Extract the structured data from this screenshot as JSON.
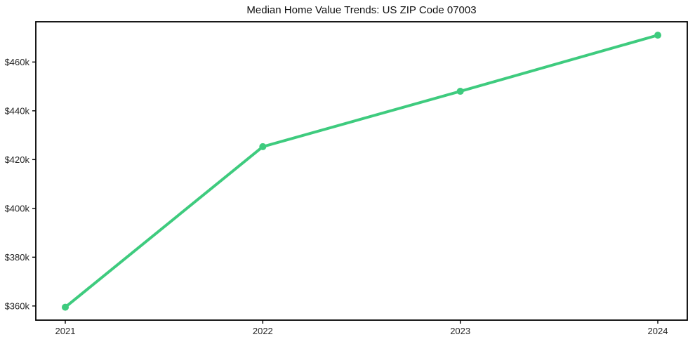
{
  "title": "Median Home Value Trends: US ZIP Code 07003",
  "style": {
    "background": "#ffffff",
    "frame_color": "#000000",
    "tick_label_color": "#262626",
    "title_color": "#111111",
    "line_color": "#3ecb7e"
  },
  "chart_data": {
    "type": "line",
    "title": "Median Home Value Trends: US ZIP Code 07003",
    "categories": [
      "2021",
      "2022",
      "2023",
      "2024"
    ],
    "values": [
      359500,
      425300,
      448000,
      471000
    ],
    "xlabel": "",
    "ylabel": "",
    "y_ticks": [
      360000,
      380000,
      400000,
      420000,
      440000,
      460000
    ],
    "y_tick_labels": [
      "$360k",
      "$380k",
      "$400k",
      "$420k",
      "$440k",
      "$460k"
    ],
    "ylim": [
      354200,
      476500
    ],
    "grid": false,
    "legend": "none",
    "marker": "circle",
    "line_width": 4,
    "marker_radius": 5
  }
}
